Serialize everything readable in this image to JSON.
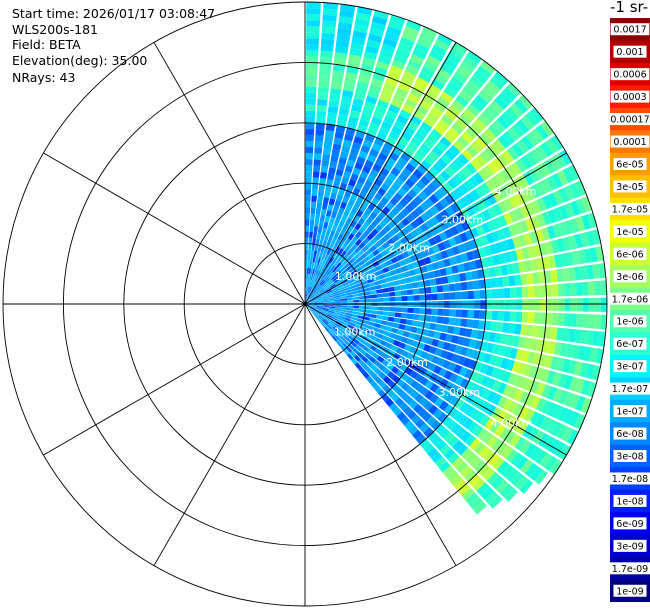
{
  "header": {
    "start_time": "Start time: 2026/01/17 03:08:47",
    "instrument": "WLS200s-181",
    "field": "Field: BETA",
    "elevation": "Elevation(deg): 35.00",
    "nrays": "NRays: 43"
  },
  "colorbar": {
    "title": "-1 sr-",
    "labels": [
      "0.0017",
      "0.001",
      "0.0006",
      "0.0003",
      "0.00017",
      "0.0001",
      "6e-05",
      "3e-05",
      "1.7e-05",
      "1e-05",
      "6e-06",
      "3e-06",
      "1.7e-06",
      "1e-06",
      "6e-07",
      "3e-07",
      "1.7e-07",
      "1e-07",
      "6e-08",
      "3e-08",
      "1.7e-08",
      "1e-08",
      "6e-09",
      "3e-09",
      "1.7e-09",
      "1e-09"
    ],
    "colors": [
      "#8b0000",
      "#b20000",
      "#dd0000",
      "#ff1a00",
      "#ff4a00",
      "#ff7800",
      "#ff9c00",
      "#ffbe00",
      "#ffdf00",
      "#f4ff0a",
      "#ccff33",
      "#a4ff5c",
      "#7cff84",
      "#54ffad",
      "#2cffd5",
      "#04f4ff",
      "#00d0ff",
      "#00acff",
      "#0088ff",
      "#0064ff",
      "#0040ff",
      "#001cff",
      "#0000f0",
      "#0000cc",
      "#0000a8",
      "#000084"
    ]
  },
  "chart_data": {
    "type": "heatmap",
    "projection": "polar-ppi",
    "field": "BETA",
    "range_rings_km": [
      "1.00km",
      "2.00km",
      "3.00km",
      "4.00km",
      "5.00km"
    ],
    "range_max_km": 5.0,
    "sector_azimuth_deg": [
      0,
      141
    ],
    "nrays": 43,
    "gate_step_km": 0.1
  }
}
